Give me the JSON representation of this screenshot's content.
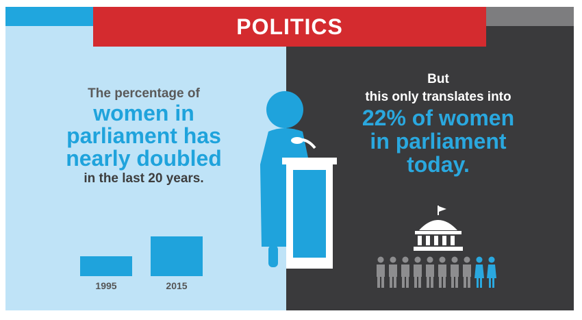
{
  "banner": {
    "title": "POLITICS"
  },
  "left": {
    "line1": "The percentage of",
    "line2": "women in",
    "line3": "parliament has",
    "line4": "nearly doubled",
    "line5": "in the last 20 years.",
    "bars": [
      {
        "label": "1995",
        "value": 11
      },
      {
        "label": "2015",
        "value": 22
      }
    ]
  },
  "right": {
    "line1": "But",
    "line2": "this only translates into",
    "line3": "22% of women",
    "line4": "in parliament",
    "line5": "today."
  },
  "people": {
    "total": 10,
    "women": 2
  },
  "colors": {
    "accent_blue": "#1fa3dc",
    "banner_red": "#d42b2f",
    "dark_panel": "#3a3a3c",
    "light_panel": "#bfe3f7"
  }
}
